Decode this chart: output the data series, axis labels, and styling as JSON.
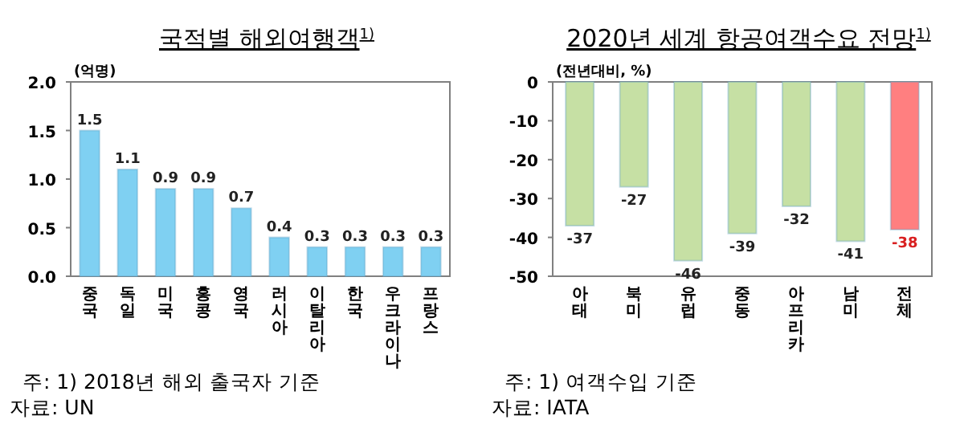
{
  "chart_data": [
    {
      "type": "bar",
      "title": "국적별 해외여행객$^{1)}$",
      "ylabel": "(억명)",
      "categories": [
        "중국",
        "독일",
        "미국",
        "홍콩",
        "영국",
        "러시아",
        "이탈리아",
        "한국",
        "우크라이나",
        "프랑스"
      ],
      "values": [
        1.5,
        1.1,
        0.9,
        0.9,
        0.7,
        0.4,
        0.3,
        0.3,
        0.3,
        0.3
      ],
      "color": "#7fd0f2",
      "ylim": [
        0,
        2
      ],
      "yticks": [
        {
          "value": 0,
          "label": "0.0"
        },
        {
          "value": 0.5,
          "label": "0.5"
        },
        {
          "value": 1,
          "label": "1.0"
        },
        {
          "value": 1.5,
          "label": "1.5"
        },
        {
          "value": 2,
          "label": "2.0"
        }
      ],
      "data_labels": true,
      "grid": false,
      "annotations": [
        "주: 1) 2018년 해외 출국자 기준",
        "자료: UN"
      ]
    },
    {
      "type": "bar",
      "title": "2020년 세계 항공여객수요 전망$^{1)}$",
      "ylabel": "(전년대비, %)",
      "categories": [
        "아태",
        "북미",
        "유럽",
        "중동",
        "아프리카",
        "남미",
        "전체"
      ],
      "values": [
        -37,
        -27,
        -46,
        -39,
        -32,
        -41,
        -38
      ],
      "colors": [
        "#c6e0a4",
        "#c6e0a4",
        "#c6e0a4",
        "#c6e0a4",
        "#c6e0a4",
        "#c6e0a4",
        "#ff7f80"
      ],
      "ylim": [
        -50,
        0
      ],
      "yticks": [
        0,
        -10,
        -20,
        -30,
        -40,
        -50
      ],
      "data_labels": true,
      "grid": false,
      "annotations": [
        "주: 1) 여객수입 기준",
        "자료: IATA"
      ]
    }
  ]
}
